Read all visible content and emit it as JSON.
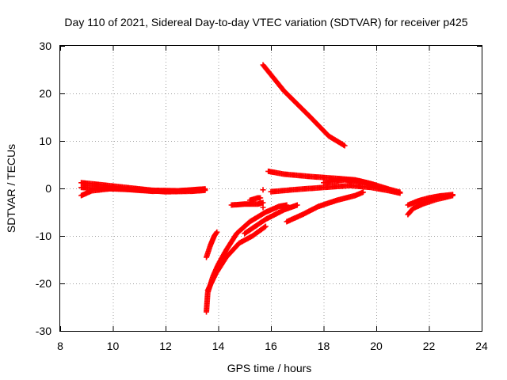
{
  "chart_data": {
    "type": "scatter",
    "title": "Day 110 of 2021, Sidereal Day-to-day VTEC variation (SDTVAR) for receiver p425",
    "xlabel": "GPS time / hours",
    "ylabel": "SDTVAR / TECUs",
    "xlim": [
      8,
      24
    ],
    "ylim": [
      -30,
      30
    ],
    "xticks": [
      8,
      10,
      12,
      14,
      16,
      18,
      20,
      22,
      24
    ],
    "yticks": [
      -30,
      -20,
      -10,
      0,
      10,
      20,
      30
    ],
    "grid": true,
    "marker": "+",
    "color": "#ff0000",
    "series": [
      {
        "segments": [
          [
            [
              8.8,
              1.2
            ],
            [
              9.5,
              0.8
            ],
            [
              10.5,
              0.2
            ],
            [
              11.5,
              -0.4
            ],
            [
              12.5,
              -0.5
            ],
            [
              13.2,
              -0.3
            ],
            [
              13.5,
              -0.2
            ]
          ],
          [
            [
              8.8,
              -1.5
            ],
            [
              9.2,
              -0.5
            ],
            [
              10.0,
              0.0
            ],
            [
              11.0,
              -0.3
            ],
            [
              12.0,
              -0.7
            ],
            [
              13.0,
              -0.6
            ],
            [
              13.5,
              -0.4
            ]
          ],
          [
            [
              8.8,
              0.2
            ],
            [
              9.5,
              0.0
            ],
            [
              10.5,
              -0.2
            ],
            [
              11.5,
              -0.6
            ],
            [
              12.5,
              -0.5
            ],
            [
              13.5,
              -0.1
            ]
          ],
          [
            [
              15.7,
              26.0
            ],
            [
              16.5,
              20.5
            ],
            [
              17.5,
              15.0
            ],
            [
              18.2,
              11.0
            ],
            [
              18.8,
              9.0
            ]
          ],
          [
            [
              13.55,
              -14.5
            ],
            [
              13.7,
              -12.0
            ],
            [
              13.85,
              -10.0
            ],
            [
              13.95,
              -9.2
            ]
          ],
          [
            [
              13.55,
              -26.0
            ],
            [
              13.6,
              -22.0
            ],
            [
              13.8,
              -18.5
            ],
            [
              14.0,
              -16.0
            ],
            [
              14.3,
              -13.0
            ],
            [
              14.7,
              -9.5
            ],
            [
              15.2,
              -7.0
            ],
            [
              15.8,
              -5.0
            ],
            [
              16.3,
              -3.8
            ],
            [
              16.6,
              -3.5
            ]
          ],
          [
            [
              13.6,
              -21.5
            ],
            [
              13.9,
              -18.0
            ],
            [
              14.3,
              -14.5
            ],
            [
              14.8,
              -11.5
            ],
            [
              15.3,
              -10.0
            ],
            [
              15.8,
              -8.0
            ]
          ],
          [
            [
              15.0,
              -9.5
            ],
            [
              15.8,
              -6.5
            ],
            [
              16.5,
              -4.5
            ],
            [
              17.0,
              -3.5
            ]
          ],
          [
            [
              14.5,
              -3.5
            ],
            [
              15.0,
              -3.3
            ],
            [
              15.5,
              -3.3
            ],
            [
              15.7,
              -3.0
            ]
          ],
          [
            [
              15.2,
              -2.5
            ],
            [
              15.5,
              -2.0
            ],
            [
              15.6,
              -2.0
            ]
          ],
          [
            [
              15.7,
              -4.0
            ]
          ],
          [
            [
              15.7,
              -0.3
            ]
          ],
          [
            [
              16.6,
              -7.0
            ],
            [
              17.2,
              -5.5
            ],
            [
              17.8,
              -3.8
            ],
            [
              18.5,
              -2.5
            ],
            [
              19.2,
              -1.5
            ],
            [
              19.5,
              -0.8
            ]
          ],
          [
            [
              16.0,
              -0.7
            ],
            [
              17.0,
              -0.2
            ],
            [
              18.0,
              0.2
            ],
            [
              19.0,
              0.6
            ],
            [
              19.8,
              0.2
            ],
            [
              20.5,
              -0.5
            ],
            [
              20.9,
              -1.0
            ]
          ],
          [
            [
              15.9,
              3.6
            ],
            [
              16.5,
              3.0
            ],
            [
              17.5,
              2.5
            ],
            [
              18.5,
              2.1
            ],
            [
              19.2,
              1.8
            ],
            [
              19.8,
              1.0
            ],
            [
              20.5,
              -0.2
            ],
            [
              20.9,
              -0.8
            ]
          ],
          [
            [
              18.0,
              1.2
            ],
            [
              18.8,
              1.8
            ],
            [
              19.4,
              1.5
            ],
            [
              19.8,
              0.8
            ]
          ],
          [
            [
              21.2,
              -3.5
            ],
            [
              21.6,
              -2.6
            ],
            [
              22.0,
              -2.0
            ],
            [
              22.4,
              -1.6
            ],
            [
              22.9,
              -1.3
            ]
          ],
          [
            [
              21.2,
              -5.5
            ],
            [
              21.4,
              -4.2
            ],
            [
              21.8,
              -3.2
            ],
            [
              22.3,
              -2.3
            ],
            [
              22.9,
              -1.5
            ]
          ]
        ]
      }
    ]
  }
}
